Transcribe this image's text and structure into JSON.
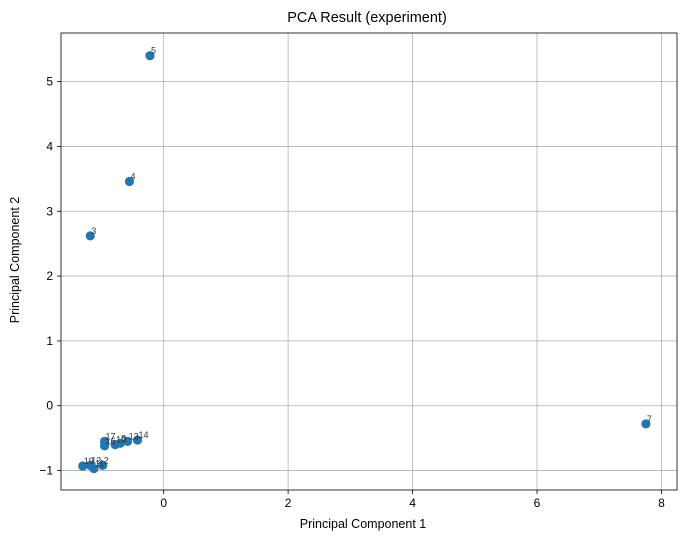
{
  "chart_data": {
    "type": "scatter",
    "title": "PCA Result (experiment)",
    "xlabel": "Principal Component 1",
    "ylabel": "Principal Component 2",
    "xlim": [
      -1.65,
      8.25
    ],
    "ylim": [
      -1.3,
      5.75
    ],
    "xticks": [
      0,
      2,
      4,
      6,
      8
    ],
    "yticks": [
      -1,
      0,
      1,
      2,
      3,
      4,
      5
    ],
    "grid": true,
    "marker_color": "#1f77b4",
    "points": [
      {
        "label": "5",
        "x": -0.22,
        "y": 5.4
      },
      {
        "label": "4",
        "x": -0.55,
        "y": 3.46
      },
      {
        "label": "3",
        "x": -1.18,
        "y": 2.62
      },
      {
        "label": "7",
        "x": 7.75,
        "y": -0.28
      },
      {
        "label": "14",
        "x": -0.42,
        "y": -0.53
      },
      {
        "label": "13",
        "x": -0.58,
        "y": -0.55
      },
      {
        "label": "8",
        "x": -0.7,
        "y": -0.58
      },
      {
        "label": "10",
        "x": -0.78,
        "y": -0.6
      },
      {
        "label": "17",
        "x": -0.95,
        "y": -0.55
      },
      {
        "label": "16",
        "x": -0.95,
        "y": -0.62
      },
      {
        "label": "2",
        "x": -0.98,
        "y": -0.92
      },
      {
        "label": "11",
        "x": -1.12,
        "y": -0.97
      },
      {
        "label": "12",
        "x": -1.18,
        "y": -0.92
      },
      {
        "label": "19",
        "x": -1.3,
        "y": -0.93
      }
    ]
  }
}
